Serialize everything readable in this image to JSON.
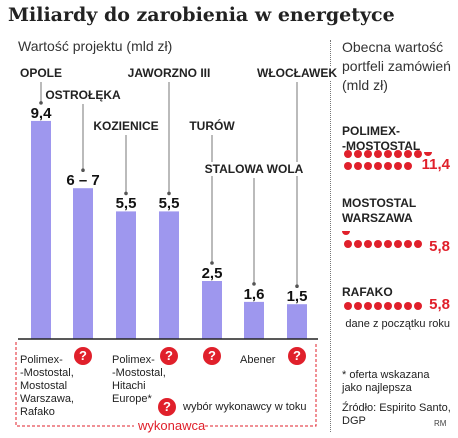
{
  "title": "Miliardy do zarobienia w energetyce",
  "chart_data": [
    {
      "type": "bar",
      "subtitle": "Wartość projektu (mld zł)",
      "categories": [
        "OPOLE",
        "OSTROŁĘKA",
        "KOZIENICE",
        "JAWORZNO III",
        "TURÓW",
        "STALOWA WOLA",
        "WŁOCŁAWEK"
      ],
      "values": [
        9.4,
        6.5,
        5.5,
        5.5,
        2.5,
        1.6,
        1.5
      ],
      "value_labels": [
        "9,4",
        "6 – 7",
        "5,5",
        "5,5",
        "2,5",
        "1,6",
        "1,5"
      ],
      "contractors": [
        "Polimex-\n-Mostostal,\nMostostal\nWarszawa,\nRafako",
        "?",
        "Polimex-\n-Mostostal,\nHitachi\nEurope*",
        "?",
        "?",
        "Abener",
        "?"
      ],
      "color": "#9e97ee",
      "ylim": [
        0,
        10
      ]
    },
    {
      "type": "bar",
      "subtitle": "Obecna wartość portfeli zamówień (mld zł)",
      "companies": [
        {
          "name": "POLIMEX-\n-MOSTOSTAL",
          "value": 11.4,
          "label": "11,4"
        },
        {
          "name": "MOSTOSTAL\nWARSZAWA",
          "value": 5.8,
          "label": "5,8"
        },
        {
          "name": "RAFAKO",
          "value": 5.8,
          "label": "5,8",
          "note": "dane z początku roku"
        }
      ],
      "color": "#e0202b"
    }
  ],
  "legend": {
    "qmark_symbol": "?",
    "qmark_text": "wybór wykonawcy w toku",
    "contractor_label": "wykonawca"
  },
  "footnote": "* oferta wskazana\njako najlepsza",
  "source": "Źródło: Espirito Santo,\nDGP",
  "credit": "RM"
}
